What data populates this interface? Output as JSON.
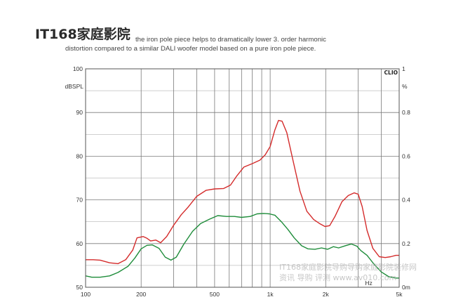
{
  "header": {
    "logo_text": "IT168家庭影院",
    "caption_line1": "the iron pole piece helps to dramatically lower 3. order harmonic",
    "caption_line2": "distortion compared to a similar DALI woofer model based on a pure iron pole piece."
  },
  "watermark": {
    "line1": "IT168家庭影院导购导购家庭影院装修网",
    "line2": "资讯 导购 评测 www.av010.com"
  },
  "chart_data": {
    "type": "line",
    "brand_label": "CLIO",
    "x_scale": "log",
    "xlim": [
      100,
      5000
    ],
    "x_ticks": [
      100,
      200,
      500,
      1000,
      2000,
      5000
    ],
    "x_tick_labels": [
      "100",
      "200",
      "500",
      "1k",
      "2k",
      "5k"
    ],
    "x_unit_label": "Hz",
    "x_gridlines": [
      100,
      200,
      300,
      400,
      500,
      600,
      700,
      800,
      900,
      1000,
      2000,
      3000,
      4000,
      5000
    ],
    "ylim": [
      50,
      100
    ],
    "y_ticks": [
      50,
      60,
      70,
      80,
      90,
      100
    ],
    "y_tick_labels": [
      "50",
      "60",
      "70",
      "80",
      "90",
      "100"
    ],
    "ylabel": "dBSPL",
    "y2lim": [
      0,
      1
    ],
    "y2_ticks": [
      0,
      0.2,
      0.4,
      0.6,
      0.8,
      1
    ],
    "y2_tick_labels": [
      "0m",
      "0.2",
      "0.4",
      "0.6",
      "0.8",
      "1"
    ],
    "y2label": "%",
    "grid": true,
    "colors": {
      "red": "#d42b2b",
      "green": "#1e8c3a",
      "grid": "#7a7a7a",
      "frame": "#555555"
    },
    "series": [
      {
        "color": "red",
        "points": [
          [
            100,
            56.3
          ],
          [
            110,
            56.3
          ],
          [
            120,
            56.2
          ],
          [
            135,
            55.6
          ],
          [
            150,
            55.4
          ],
          [
            165,
            56.3
          ],
          [
            180,
            58.5
          ],
          [
            190,
            61.3
          ],
          [
            205,
            61.6
          ],
          [
            215,
            61.2
          ],
          [
            225,
            60.6
          ],
          [
            240,
            60.8
          ],
          [
            255,
            60.2
          ],
          [
            275,
            61.6
          ],
          [
            300,
            64.2
          ],
          [
            330,
            66.6
          ],
          [
            360,
            68.4
          ],
          [
            400,
            70.8
          ],
          [
            450,
            72.2
          ],
          [
            500,
            72.5
          ],
          [
            560,
            72.6
          ],
          [
            610,
            73.4
          ],
          [
            660,
            75.5
          ],
          [
            720,
            77.5
          ],
          [
            800,
            78.3
          ],
          [
            880,
            79.1
          ],
          [
            940,
            80.3
          ],
          [
            1000,
            82.2
          ],
          [
            1060,
            86.0
          ],
          [
            1110,
            88.2
          ],
          [
            1160,
            88.0
          ],
          [
            1230,
            85.4
          ],
          [
            1330,
            79.0
          ],
          [
            1450,
            72.0
          ],
          [
            1580,
            67.4
          ],
          [
            1720,
            65.5
          ],
          [
            1850,
            64.6
          ],
          [
            1980,
            63.9
          ],
          [
            2100,
            64.1
          ],
          [
            2250,
            66.3
          ],
          [
            2450,
            69.6
          ],
          [
            2650,
            71.0
          ],
          [
            2850,
            71.6
          ],
          [
            3000,
            71.3
          ],
          [
            3150,
            68.5
          ],
          [
            3350,
            63.0
          ],
          [
            3600,
            58.9
          ],
          [
            3900,
            57.0
          ],
          [
            4200,
            56.8
          ],
          [
            4500,
            57.0
          ],
          [
            4800,
            57.3
          ],
          [
            5000,
            57.3
          ]
        ]
      },
      {
        "color": "green",
        "points": [
          [
            100,
            52.6
          ],
          [
            108,
            52.3
          ],
          [
            120,
            52.3
          ],
          [
            135,
            52.6
          ],
          [
            150,
            53.4
          ],
          [
            170,
            54.8
          ],
          [
            185,
            56.7
          ],
          [
            200,
            58.8
          ],
          [
            215,
            59.6
          ],
          [
            230,
            59.7
          ],
          [
            250,
            58.9
          ],
          [
            270,
            56.9
          ],
          [
            290,
            56.2
          ],
          [
            310,
            56.9
          ],
          [
            340,
            59.8
          ],
          [
            380,
            62.8
          ],
          [
            420,
            64.6
          ],
          [
            470,
            65.6
          ],
          [
            520,
            66.4
          ],
          [
            580,
            66.2
          ],
          [
            640,
            66.2
          ],
          [
            700,
            66.0
          ],
          [
            780,
            66.2
          ],
          [
            850,
            66.8
          ],
          [
            920,
            66.9
          ],
          [
            990,
            66.8
          ],
          [
            1060,
            66.5
          ],
          [
            1150,
            65.0
          ],
          [
            1250,
            63.2
          ],
          [
            1350,
            61.3
          ],
          [
            1480,
            59.5
          ],
          [
            1600,
            58.8
          ],
          [
            1750,
            58.7
          ],
          [
            1900,
            59.0
          ],
          [
            2050,
            58.7
          ],
          [
            2200,
            59.3
          ],
          [
            2350,
            59.0
          ],
          [
            2550,
            59.5
          ],
          [
            2750,
            59.9
          ],
          [
            2950,
            59.4
          ],
          [
            3100,
            58.4
          ],
          [
            3350,
            57.3
          ],
          [
            3650,
            55.3
          ],
          [
            4000,
            53.5
          ],
          [
            4400,
            52.4
          ],
          [
            4800,
            52.1
          ],
          [
            5000,
            52.1
          ]
        ]
      }
    ]
  }
}
